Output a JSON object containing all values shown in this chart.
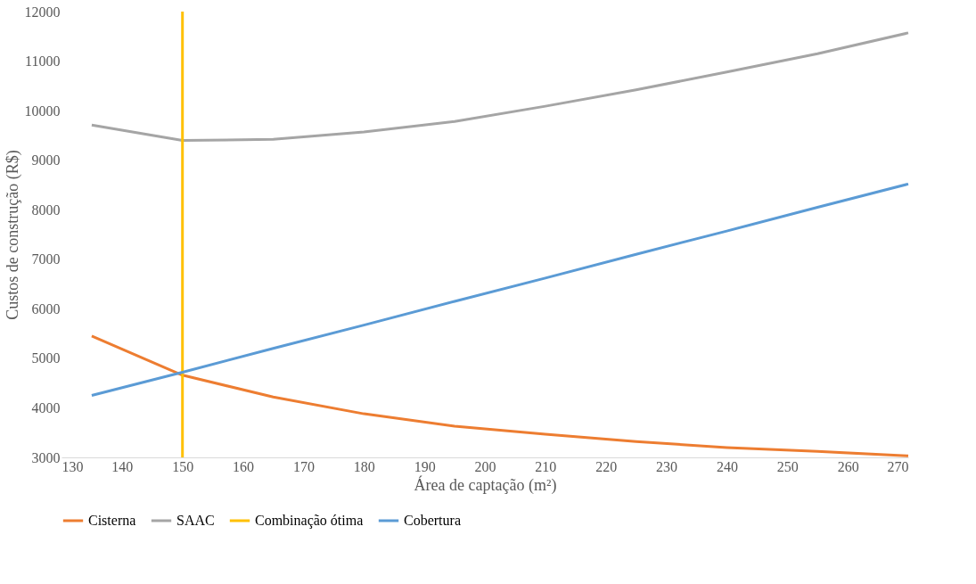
{
  "chart_data": {
    "type": "line",
    "xlabel": "Área de captação (m²)",
    "ylabel": "Custos de construção (R$)",
    "xlim": [
      130,
      270
    ],
    "xticks": [
      130,
      140,
      150,
      160,
      170,
      180,
      190,
      200,
      210,
      220,
      230,
      240,
      250,
      260,
      270
    ],
    "ylim": [
      3000,
      12000
    ],
    "yticks": [
      3000,
      4000,
      5000,
      6000,
      7000,
      8000,
      9000,
      10000,
      11000,
      12000
    ],
    "grid": false,
    "legend": "bottom",
    "marker": "none",
    "line_style": "solid",
    "series": [
      {
        "name": "Cisterna",
        "color": "#ed7d31",
        "x": [
          135,
          150,
          165,
          180,
          195,
          210,
          225,
          240,
          255,
          270
        ],
        "values": [
          5450,
          4660,
          4220,
          3880,
          3630,
          3470,
          3320,
          3200,
          3120,
          3030
        ]
      },
      {
        "name": "SAAC",
        "color": "#a5a5a5",
        "x": [
          135,
          150,
          165,
          180,
          195,
          210,
          225,
          240,
          255,
          270
        ],
        "values": [
          9710,
          9400,
          9420,
          9570,
          9780,
          10090,
          10420,
          10780,
          11150,
          11570
        ]
      },
      {
        "name": "Combinação ótima",
        "color": "#ffc000",
        "x": [
          150,
          150
        ],
        "values": [
          3000,
          12000
        ]
      },
      {
        "name": "Cobertura",
        "color": "#5b9bd5",
        "x": [
          135,
          150,
          165,
          180,
          195,
          210,
          225,
          240,
          255,
          270
        ],
        "values": [
          4250,
          4720,
          5200,
          5670,
          6150,
          6620,
          7100,
          7570,
          8050,
          8520
        ]
      }
    ]
  }
}
